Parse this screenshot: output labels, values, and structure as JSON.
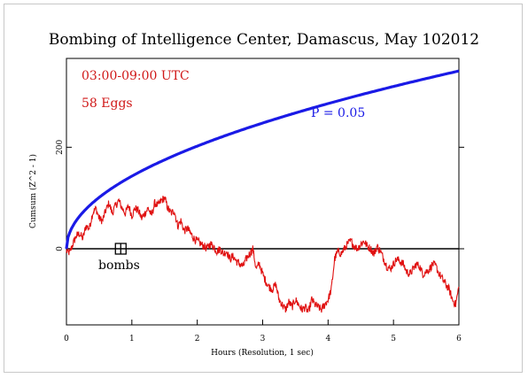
{
  "chart_data": {
    "type": "line",
    "title": "Bombing of Intelligence Center, Damascus, May 102012",
    "xlabel": "Hours (Resolution, 1 sec)",
    "ylabel": "Cumsum (Z^2 - 1)",
    "xlim": [
      0,
      6
    ],
    "ylim": [
      -150,
      375
    ],
    "x_ticks": [
      0,
      1,
      2,
      3,
      4,
      5,
      6
    ],
    "y_ticks": [
      0,
      200
    ],
    "grid": false,
    "annotations": {
      "time_window": "03:00-09:00 UTC",
      "eggs": "58 Eggs",
      "probability_label": "P = 0.05",
      "event_label": "bombs"
    },
    "event_marker": {
      "x": 0.83,
      "y": 0
    },
    "series": [
      {
        "role": "cumulative-deviation",
        "color": "#e01010",
        "x": [
          0,
          0.05,
          0.1,
          0.15,
          0.2,
          0.25,
          0.3,
          0.35,
          0.4,
          0.45,
          0.5,
          0.55,
          0.6,
          0.65,
          0.7,
          0.75,
          0.8,
          0.85,
          0.9,
          0.95,
          1.0,
          1.05,
          1.1,
          1.15,
          1.2,
          1.25,
          1.3,
          1.35,
          1.4,
          1.45,
          1.5,
          1.55,
          1.6,
          1.65,
          1.7,
          1.75,
          1.8,
          1.85,
          1.9,
          1.95,
          2.0,
          2.05,
          2.1,
          2.15,
          2.2,
          2.25,
          2.3,
          2.35,
          2.4,
          2.45,
          2.5,
          2.55,
          2.6,
          2.65,
          2.7,
          2.75,
          2.8,
          2.85,
          2.9,
          2.95,
          3.0,
          3.05,
          3.1,
          3.15,
          3.2,
          3.25,
          3.3,
          3.35,
          3.4,
          3.45,
          3.5,
          3.55,
          3.6,
          3.65,
          3.7,
          3.75,
          3.8,
          3.85,
          3.9,
          3.95,
          4.0,
          4.05,
          4.1,
          4.15,
          4.2,
          4.25,
          4.3,
          4.35,
          4.4,
          4.45,
          4.5,
          4.55,
          4.6,
          4.65,
          4.7,
          4.75,
          4.8,
          4.85,
          4.9,
          4.95,
          5.0,
          5.05,
          5.1,
          5.15,
          5.2,
          5.25,
          5.3,
          5.35,
          5.4,
          5.45,
          5.5,
          5.55,
          5.6,
          5.65,
          5.7,
          5.75,
          5.8,
          5.85,
          5.9,
          5.95,
          6.0
        ],
        "y": [
          -5,
          -8,
          10,
          25,
          30,
          20,
          45,
          40,
          70,
          80,
          60,
          55,
          75,
          90,
          70,
          85,
          95,
          80,
          70,
          85,
          65,
          80,
          75,
          60,
          70,
          80,
          65,
          90,
          85,
          95,
          100,
          80,
          70,
          75,
          45,
          55,
          35,
          40,
          30,
          20,
          15,
          10,
          5,
          0,
          10,
          5,
          -5,
          0,
          -10,
          -5,
          -20,
          -15,
          -25,
          -30,
          -35,
          -20,
          -10,
          0,
          -40,
          -30,
          -50,
          -65,
          -75,
          -80,
          -70,
          -100,
          -110,
          -120,
          -105,
          -115,
          -100,
          -110,
          -120,
          -115,
          -125,
          -100,
          -110,
          -115,
          -120,
          -110,
          -100,
          -80,
          -20,
          -5,
          -10,
          0,
          10,
          15,
          5,
          0,
          10,
          15,
          5,
          0,
          -10,
          5,
          -5,
          -20,
          -35,
          -40,
          -30,
          -20,
          -25,
          -30,
          -45,
          -50,
          -40,
          -30,
          -35,
          -50,
          -45,
          -40,
          -30,
          -35,
          -50,
          -60,
          -70,
          -80,
          -100,
          -110,
          -75
        ]
      },
      {
        "role": "p-005-envelope",
        "color": "#1a1ae6",
        "label": "P = 0.05",
        "formula": "sqrt(x) * 143"
      }
    ]
  }
}
